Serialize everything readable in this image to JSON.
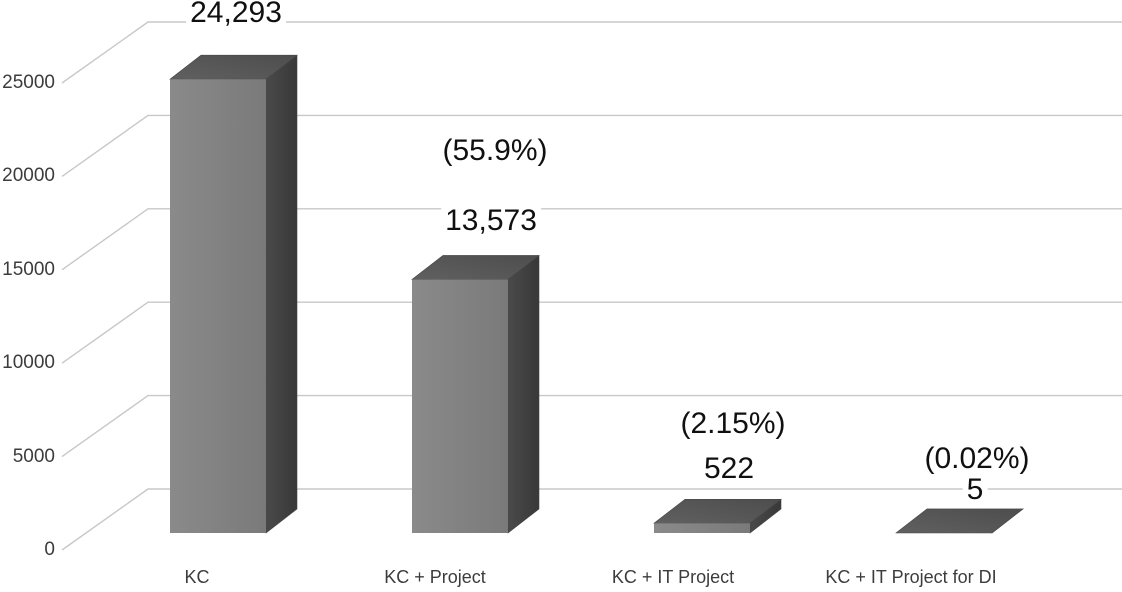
{
  "chart_data": {
    "type": "bar",
    "projection": "3d-oblique",
    "title": "",
    "xlabel": "",
    "ylabel": "",
    "categories": [
      "KC",
      "KC + Project",
      "KC + IT Project",
      "KC + IT Project for DI"
    ],
    "values": [
      24293,
      13573,
      522,
      5
    ],
    "value_labels": [
      "24,293",
      "13,573",
      "522",
      "5"
    ],
    "pct_labels": [
      "",
      "(55.9%)",
      "(2.15%)",
      "(0.02%)"
    ],
    "ylim": [
      0,
      25000
    ],
    "y_step": 5000,
    "yticks": [
      "0",
      "5000",
      "10000",
      "15000",
      "20000",
      "25000"
    ],
    "grid": true,
    "legend": false
  },
  "colors": {
    "background": "#ffffff",
    "gridline": "#c8c8c8",
    "axis_text": "#3c3c3c",
    "data_label_text": "#101010",
    "bar_front_light": "#8a8a8a",
    "bar_front_dark": "#7a7a7a",
    "bar_top_light": "#606060",
    "bar_top_dark": "#4d4d4d",
    "bar_side_light": "#4a4a4a",
    "bar_side_dark": "#383838",
    "bar_edge": "#474747"
  }
}
